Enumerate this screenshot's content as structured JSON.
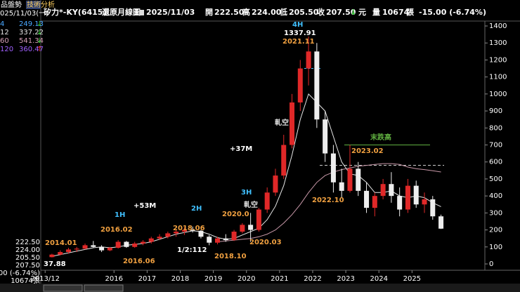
{
  "sidebar": {
    "tabs": [
      "品盤勢",
      "技術分析"
    ],
    "date": "025/11/03(一)",
    "indicators": [
      {
        "period": "4",
        "value": "249.13",
        "arrow": "↓",
        "color": "#4aa8ff"
      },
      {
        "period": "12",
        "value": "337.22",
        "arrow": "↓",
        "color": "#e8e8e8"
      },
      {
        "period": "60",
        "value": "541.34",
        "arrow": "↓",
        "color": "#d8a0b8"
      },
      {
        "period": "120",
        "value": "360.47",
        "arrow": "↑",
        "color": "#a060ff"
      }
    ],
    "quote": [
      "222.50",
      "224.00",
      "205.50",
      "207.50",
      "-15.00 (-6.74%)",
      "10674張"
    ]
  },
  "header": {
    "title": "矽力*-KY(6415)",
    "mode": "還原月線圖",
    "date": "2025/11/03",
    "fields": [
      [
        "開",
        "222.50"
      ],
      [
        "高",
        "224.00"
      ],
      [
        "低",
        "205.50"
      ],
      [
        "收",
        "207.50"
      ]
    ],
    "arrow": "↓",
    "unit": "元",
    "volume_label": "量",
    "volume": "10674",
    "volume_unit": "張",
    "change": "-15.00 (-6.74%)"
  },
  "chart_data": {
    "type": "candlestick",
    "xlim": [
      2013.83,
      2027.2
    ],
    "ylim": [
      0,
      1400
    ],
    "yticks": [
      0,
      100,
      200,
      300,
      400,
      500,
      600,
      700,
      800,
      900,
      1000,
      1100,
      1200,
      1300,
      1400
    ],
    "xticks": [
      {
        "value": 2013.92,
        "label": "2013/12"
      },
      2016,
      2017,
      2018,
      2019,
      2020,
      2021,
      2022,
      2023,
      2024,
      2025
    ],
    "up_color": "#e02828",
    "down_color": "#eeeeee",
    "candles": {
      "x": [
        2014.125,
        2014.375,
        2014.625,
        2014.875,
        2015.125,
        2015.375,
        2015.625,
        2015.875,
        2016.125,
        2016.375,
        2016.625,
        2016.875,
        2017.125,
        2017.375,
        2017.625,
        2017.875,
        2018.125,
        2018.375,
        2018.625,
        2018.875,
        2019.125,
        2019.375,
        2019.625,
        2019.875,
        2020.125,
        2020.375,
        2020.625,
        2020.875,
        2021.125,
        2021.375,
        2021.625,
        2021.875,
        2022.125,
        2022.375,
        2022.625,
        2022.875,
        2023.125,
        2023.375,
        2023.625,
        2023.875,
        2024.125,
        2024.375,
        2024.625,
        2024.875,
        2025.125,
        2025.375,
        2025.625,
        2025.875
      ],
      "open": [
        40,
        55,
        70,
        85,
        90,
        110,
        100,
        80,
        95,
        130,
        100,
        120,
        130,
        150,
        160,
        180,
        190,
        200,
        195,
        160,
        125,
        150,
        140,
        190,
        230,
        200,
        320,
        420,
        520,
        700,
        950,
        1150,
        1250,
        850,
        650,
        480,
        430,
        560,
        430,
        330,
        400,
        470,
        400,
        320,
        460,
        350,
        380,
        280
      ],
      "high": [
        60,
        80,
        95,
        100,
        120,
        135,
        110,
        100,
        140,
        135,
        130,
        140,
        160,
        175,
        190,
        200,
        215,
        220,
        200,
        170,
        160,
        175,
        200,
        240,
        300,
        330,
        450,
        560,
        760,
        1000,
        1200,
        1337.91,
        1300,
        900,
        700,
        560,
        700,
        600,
        480,
        420,
        500,
        540,
        450,
        500,
        490,
        420,
        400,
        290
      ],
      "low": [
        38,
        50,
        60,
        70,
        85,
        95,
        70,
        75,
        90,
        95,
        95,
        110,
        120,
        140,
        150,
        160,
        170,
        185,
        150,
        110,
        115,
        130,
        135,
        180,
        130,
        190,
        300,
        400,
        500,
        680,
        900,
        1050,
        800,
        600,
        420,
        390,
        420,
        400,
        300,
        280,
        380,
        360,
        280,
        300,
        330,
        300,
        260,
        205.5
      ],
      "close": [
        55,
        70,
        85,
        90,
        110,
        100,
        80,
        95,
        130,
        100,
        120,
        130,
        150,
        160,
        180,
        190,
        200,
        195,
        160,
        125,
        150,
        140,
        190,
        230,
        200,
        320,
        420,
        520,
        700,
        950,
        1150,
        1250,
        850,
        650,
        480,
        430,
        560,
        430,
        330,
        400,
        470,
        400,
        320,
        460,
        350,
        380,
        280,
        207.5
      ]
    },
    "lines": [
      {
        "color": "#e8e8e8",
        "values": [
          45,
          55,
          65,
          75,
          85,
          95,
          100,
          95,
          100,
          110,
          115,
          120,
          130,
          145,
          160,
          175,
          185,
          195,
          190,
          175,
          155,
          145,
          150,
          170,
          190,
          210,
          260,
          340,
          460,
          640,
          850,
          1000,
          950,
          900,
          750,
          600,
          530,
          520,
          480,
          420,
          420,
          430,
          400,
          390,
          400,
          390,
          360,
          337
        ]
      },
      {
        "color": "#c898a8",
        "values": [
          null,
          null,
          null,
          null,
          null,
          null,
          null,
          null,
          null,
          null,
          null,
          null,
          null,
          null,
          null,
          null,
          null,
          null,
          null,
          null,
          130,
          135,
          140,
          145,
          150,
          160,
          175,
          200,
          240,
          290,
          350,
          420,
          480,
          520,
          540,
          555,
          565,
          575,
          580,
          585,
          590,
          590,
          585,
          570,
          560,
          555,
          548,
          541
        ]
      }
    ],
    "levels": [
      {
        "value": 700,
        "color": "#60b040"
      },
      {
        "value": 580,
        "color": "#cccccc"
      },
      {
        "value": 1150,
        "color": "#40c0ff"
      }
    ],
    "annotations": [
      "2014.01",
      "2016.02",
      "2016.06",
      "2018.06",
      "2018.10",
      "1/2:112",
      "2020.0",
      "2020.03",
      "軋空",
      "3H",
      "2H",
      "1H",
      "+53M",
      "+37M",
      "軋空",
      "2021.11",
      "4H",
      "1337.91",
      "2022.10",
      "2023.02",
      "末跌高",
      "37.88"
    ]
  }
}
